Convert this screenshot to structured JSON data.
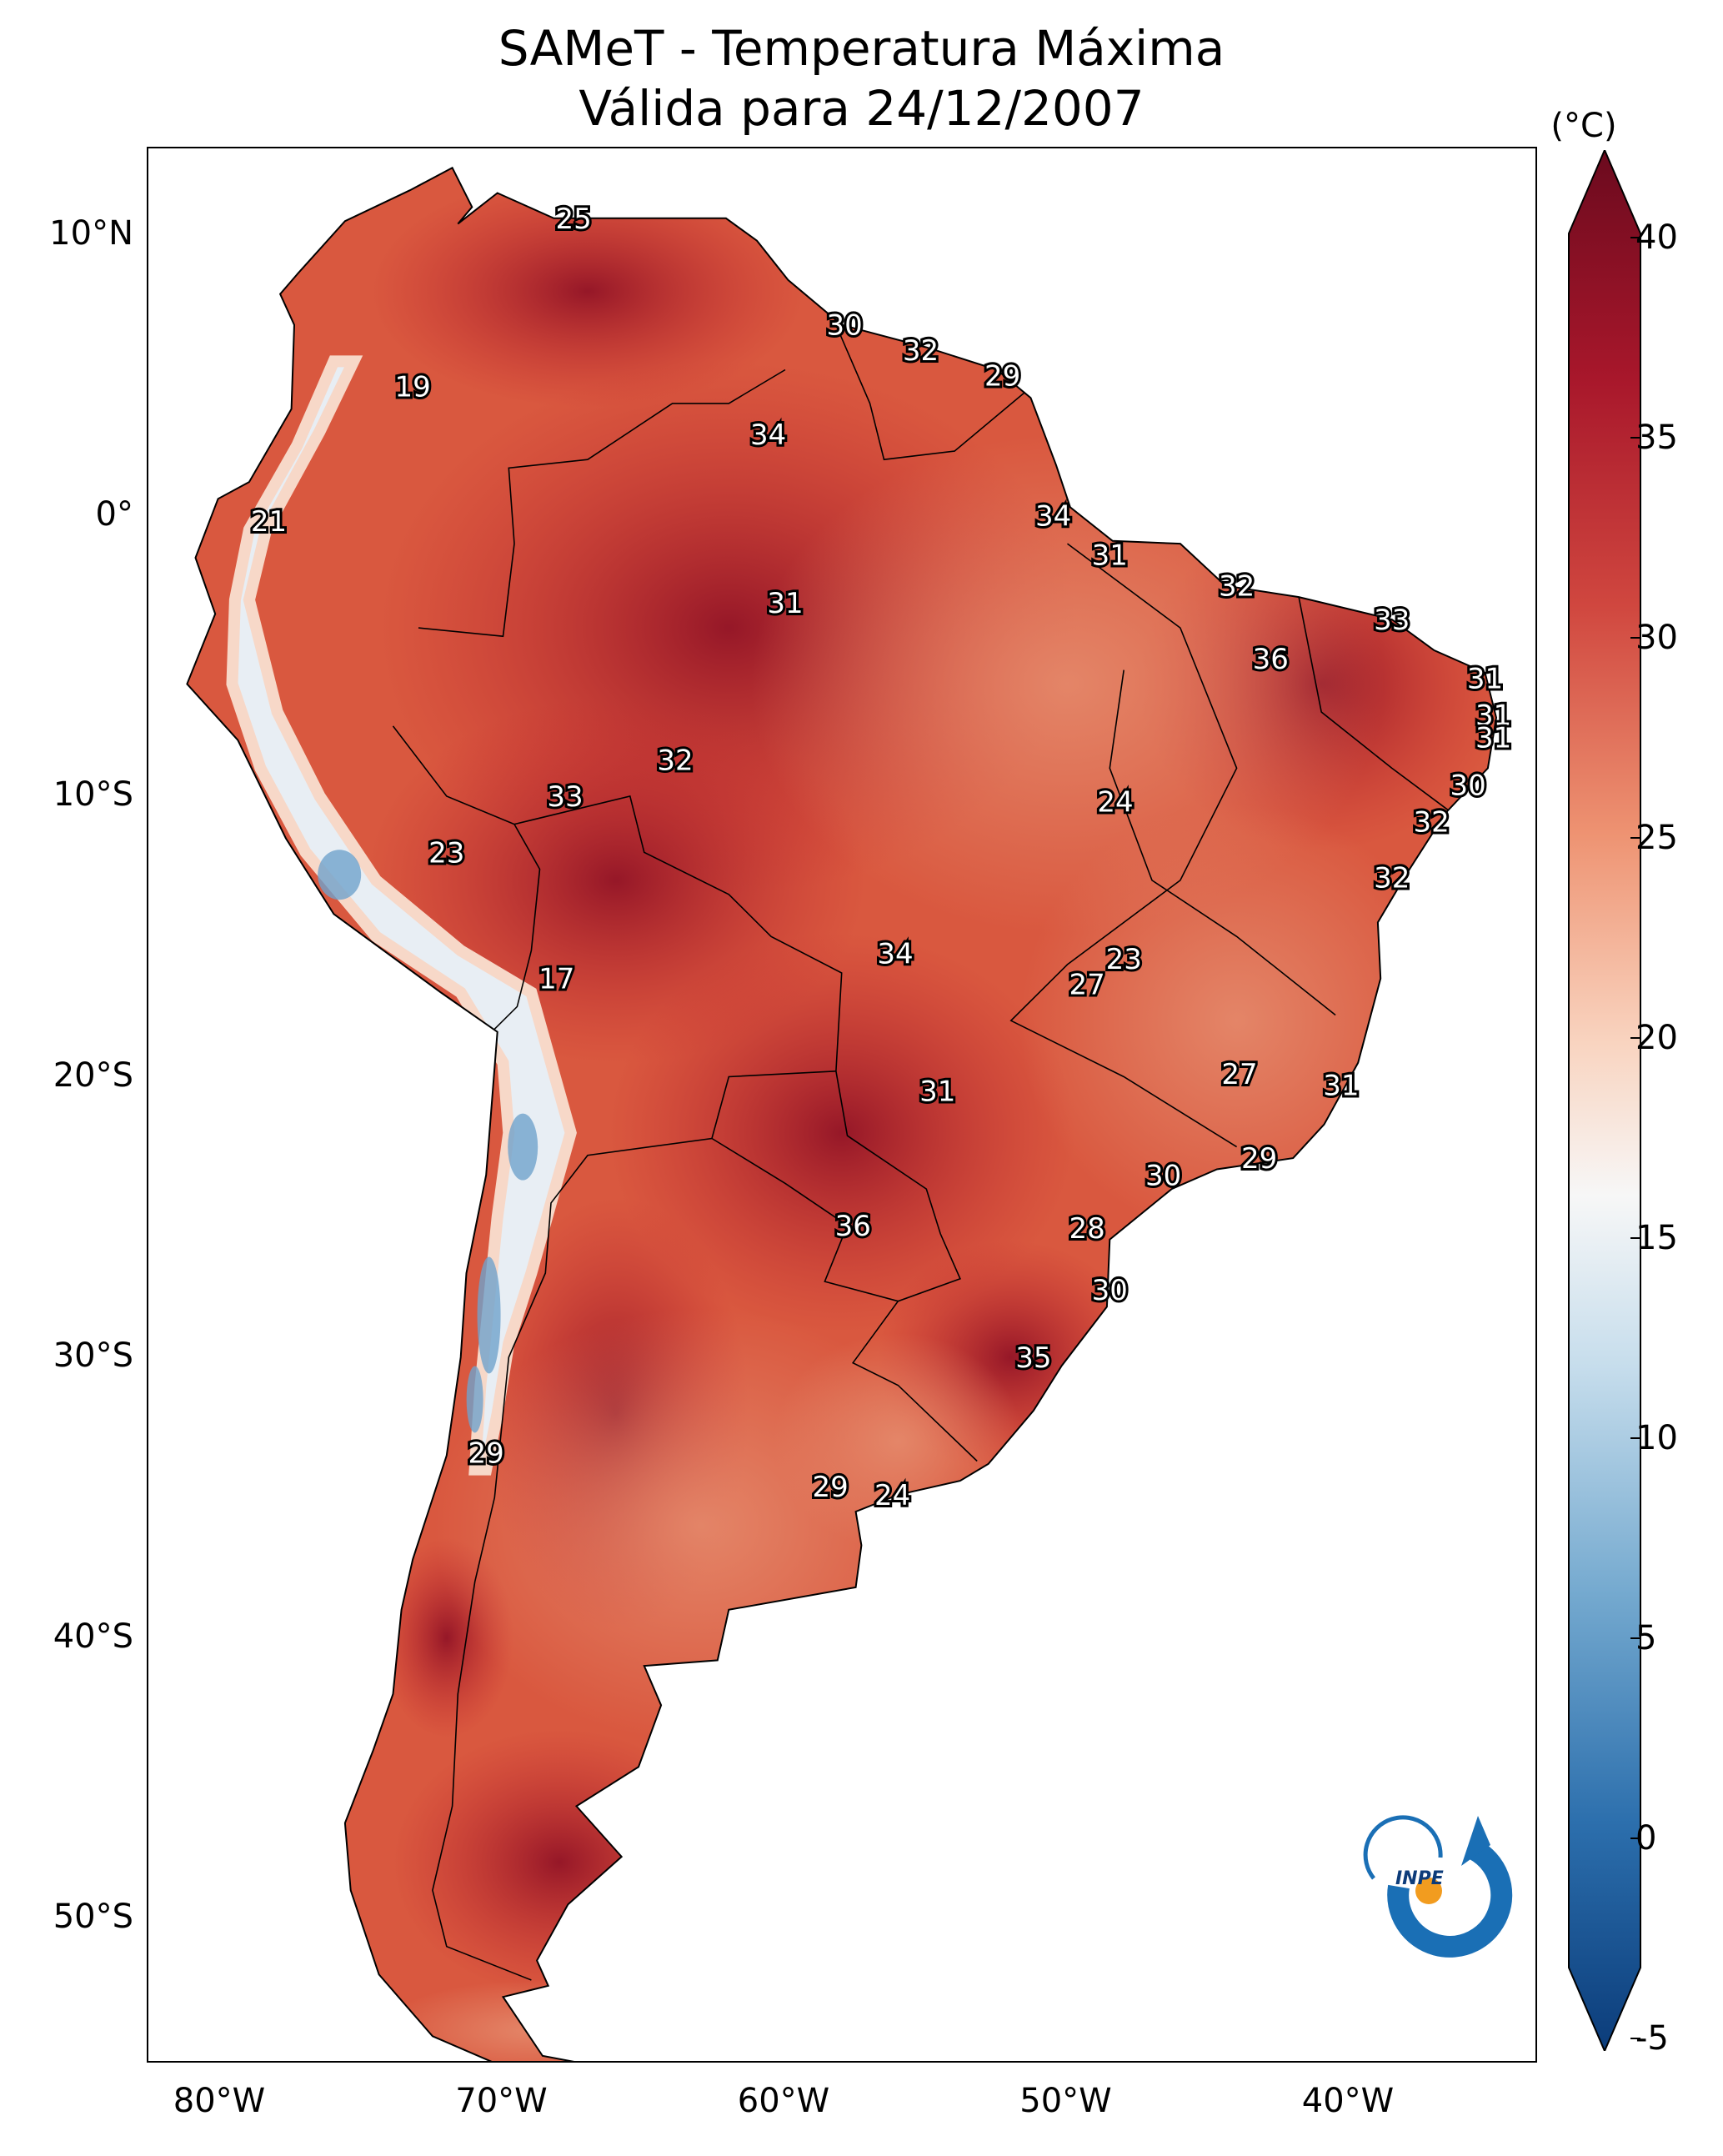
{
  "title": "SAMeT - Temperatura Máxima",
  "subtitle": "Válida para 24/12/2007",
  "lat_labels": [
    "10°N",
    "0°",
    "10°S",
    "20°S",
    "30°S",
    "40°S",
    "50°S"
  ],
  "lon_labels": [
    "80°W",
    "70°W",
    "60°W",
    "50°W",
    "40°W"
  ],
  "colorbar": {
    "unit": "(°C)",
    "ticks": [
      "40",
      "35",
      "30",
      "25",
      "20",
      "15",
      "10",
      "5",
      "0",
      "-5"
    ],
    "range": [
      -5,
      40
    ],
    "colors": {
      "cold": "#0b3c7a",
      "cool": "#4a91c6",
      "neutral": "#f7f7f7",
      "warm": "#f0a07e",
      "hot": "#c3272e",
      "extreme": "#6b0a1e"
    }
  },
  "logo_text": "INPE",
  "stations": [
    {
      "lon": -67.5,
      "lat": 10.6,
      "value": "25"
    },
    {
      "lon": -57.9,
      "lat": 6.8,
      "value": "30"
    },
    {
      "lon": -55.2,
      "lat": 5.9,
      "value": "32"
    },
    {
      "lon": -52.3,
      "lat": 5.0,
      "value": "29"
    },
    {
      "lon": -73.2,
      "lat": 4.6,
      "value": "19"
    },
    {
      "lon": -60.6,
      "lat": 2.9,
      "value": "34"
    },
    {
      "lon": -78.3,
      "lat": -0.2,
      "value": "21"
    },
    {
      "lon": -50.5,
      "lat": 0.0,
      "value": "34"
    },
    {
      "lon": -48.5,
      "lat": -1.4,
      "value": "31"
    },
    {
      "lon": -44.0,
      "lat": -2.5,
      "value": "32"
    },
    {
      "lon": -60.0,
      "lat": -3.1,
      "value": "31"
    },
    {
      "lon": -38.5,
      "lat": -3.7,
      "value": "33"
    },
    {
      "lon": -42.8,
      "lat": -5.1,
      "value": "36"
    },
    {
      "lon": -35.2,
      "lat": -5.8,
      "value": "31"
    },
    {
      "lon": -34.9,
      "lat": -7.1,
      "value": "31"
    },
    {
      "lon": -34.9,
      "lat": -7.9,
      "value": "31"
    },
    {
      "lon": -63.9,
      "lat": -8.7,
      "value": "32"
    },
    {
      "lon": -35.8,
      "lat": -9.6,
      "value": "30"
    },
    {
      "lon": -67.8,
      "lat": -10.0,
      "value": "33"
    },
    {
      "lon": -48.3,
      "lat": -10.2,
      "value": "24"
    },
    {
      "lon": -37.1,
      "lat": -10.9,
      "value": "32"
    },
    {
      "lon": -72.0,
      "lat": -12.0,
      "value": "23"
    },
    {
      "lon": -38.5,
      "lat": -12.9,
      "value": "32"
    },
    {
      "lon": -56.1,
      "lat": -15.6,
      "value": "34"
    },
    {
      "lon": -48.0,
      "lat": -15.8,
      "value": "23"
    },
    {
      "lon": -49.3,
      "lat": -16.7,
      "value": "27"
    },
    {
      "lon": -68.1,
      "lat": -16.5,
      "value": "17"
    },
    {
      "lon": -43.9,
      "lat": -19.9,
      "value": "27"
    },
    {
      "lon": -40.3,
      "lat": -20.3,
      "value": "31"
    },
    {
      "lon": -54.6,
      "lat": -20.5,
      "value": "31"
    },
    {
      "lon": -43.2,
      "lat": -22.9,
      "value": "29"
    },
    {
      "lon": -46.6,
      "lat": -23.5,
      "value": "30"
    },
    {
      "lon": -57.6,
      "lat": -25.3,
      "value": "36"
    },
    {
      "lon": -49.3,
      "lat": -25.4,
      "value": "28"
    },
    {
      "lon": -48.5,
      "lat": -27.6,
      "value": "30"
    },
    {
      "lon": -51.2,
      "lat": -30.0,
      "value": "35"
    },
    {
      "lon": -70.6,
      "lat": -33.4,
      "value": "29"
    },
    {
      "lon": -58.4,
      "lat": -34.6,
      "value": "29"
    },
    {
      "lon": -56.2,
      "lat": -34.9,
      "value": "24"
    }
  ]
}
